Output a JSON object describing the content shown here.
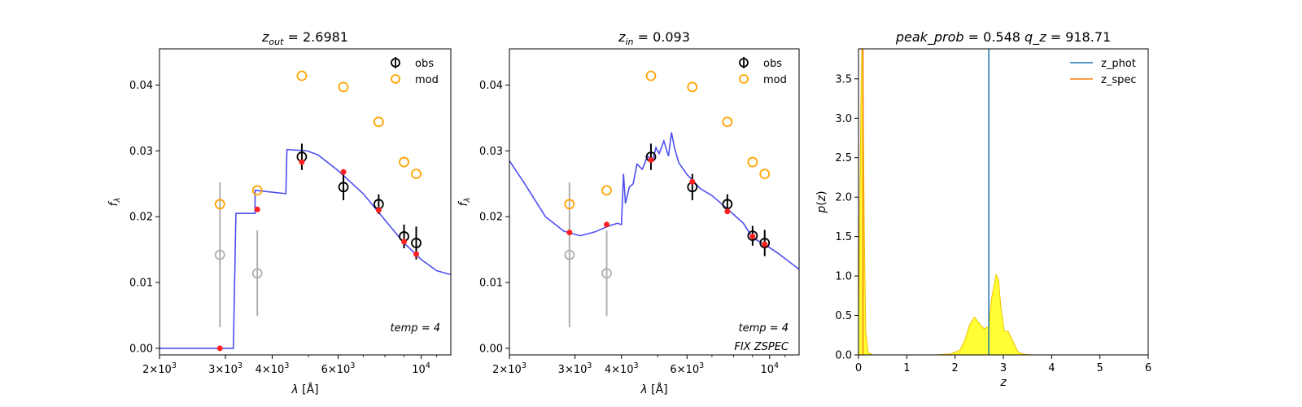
{
  "chart_data": [
    {
      "type": "scatter",
      "panel": "sed_zout",
      "title": "z_out = 2.6981",
      "title_var": "z",
      "title_sub": "out",
      "title_value": "2.6981",
      "xlabel": "λ [Å]",
      "ylabel": "f_λ",
      "xscale": "log",
      "xlim": [
        2000,
        12000
      ],
      "ylim": [
        -0.001,
        0.0455
      ],
      "xticks": [
        {
          "value": 2000,
          "mant": "2",
          "exp": "3"
        },
        {
          "value": 3000,
          "mant": "3",
          "exp": "3"
        },
        {
          "value": 4000,
          "mant": "4",
          "exp": "3"
        },
        {
          "value": 6000,
          "mant": "6",
          "exp": "3"
        },
        {
          "value": 10000,
          "mant": "",
          "exp": "4"
        }
      ],
      "yticks": [
        0.0,
        0.01,
        0.02,
        0.03,
        0.04
      ],
      "ytick_labels": [
        "0.00",
        "0.01",
        "0.02",
        "0.03",
        "0.04"
      ],
      "legend": [
        "obs",
        "mod"
      ],
      "annotations": [
        "temp = 4"
      ],
      "template_curve": [
        [
          2000,
          0.0
        ],
        [
          3150,
          0.0
        ],
        [
          3200,
          0.0205
        ],
        [
          3600,
          0.0205
        ],
        [
          3600,
          0.024
        ],
        [
          4350,
          0.0235
        ],
        [
          4380,
          0.0302
        ],
        [
          4950,
          0.03
        ],
        [
          5300,
          0.0294
        ],
        [
          6000,
          0.027
        ],
        [
          7000,
          0.0235
        ],
        [
          8000,
          0.0195
        ],
        [
          9000,
          0.016
        ],
        [
          10000,
          0.0135
        ],
        [
          11000,
          0.0118
        ],
        [
          12000,
          0.0112
        ]
      ],
      "obs": [
        {
          "x": 4800,
          "y": 0.0291,
          "err": 0.002
        },
        {
          "x": 6200,
          "y": 0.0245,
          "err": 0.002
        },
        {
          "x": 7700,
          "y": 0.0219,
          "err": 0.0015
        },
        {
          "x": 9000,
          "y": 0.017,
          "err": 0.0018
        },
        {
          "x": 9700,
          "y": 0.016,
          "err": 0.0025
        }
      ],
      "obs_low": [
        {
          "x": 2900,
          "y": 0.0142,
          "err": 0.011
        },
        {
          "x": 3650,
          "y": 0.0114,
          "err": 0.0065
        }
      ],
      "mod": [
        {
          "x": 2900,
          "y": 0.0219
        },
        {
          "x": 3650,
          "y": 0.024
        },
        {
          "x": 4800,
          "y": 0.0414
        },
        {
          "x": 6200,
          "y": 0.0397
        },
        {
          "x": 7700,
          "y": 0.0344
        },
        {
          "x": 9000,
          "y": 0.0283
        },
        {
          "x": 9700,
          "y": 0.0265
        }
      ],
      "model_points": [
        {
          "x": 2900,
          "y": 0.0
        },
        {
          "x": 3650,
          "y": 0.0211
        },
        {
          "x": 4800,
          "y": 0.0283
        },
        {
          "x": 6200,
          "y": 0.0268
        },
        {
          "x": 7700,
          "y": 0.021
        },
        {
          "x": 9000,
          "y": 0.0162
        },
        {
          "x": 9700,
          "y": 0.0143
        }
      ]
    },
    {
      "type": "scatter",
      "panel": "sed_zin",
      "title": "z_in = 0.093",
      "title_var": "z",
      "title_sub": "in",
      "title_value": "0.093",
      "xlabel": "λ [Å]",
      "ylabel": "f_λ",
      "xscale": "log",
      "xlim": [
        2000,
        12000
      ],
      "ylim": [
        -0.001,
        0.0455
      ],
      "xticks": [
        {
          "value": 2000,
          "mant": "2",
          "exp": "3"
        },
        {
          "value": 3000,
          "mant": "3",
          "exp": "3"
        },
        {
          "value": 4000,
          "mant": "4",
          "exp": "3"
        },
        {
          "value": 6000,
          "mant": "6",
          "exp": "3"
        },
        {
          "value": 10000,
          "mant": "",
          "exp": "4"
        }
      ],
      "yticks": [
        0.0,
        0.01,
        0.02,
        0.03,
        0.04
      ],
      "ytick_labels": [
        "0.00",
        "0.01",
        "0.02",
        "0.03",
        "0.04"
      ],
      "legend": [
        "obs",
        "mod"
      ],
      "annotations": [
        "temp = 4",
        "FIX ZSPEC"
      ],
      "template_curve": [
        [
          2000,
          0.0285
        ],
        [
          2200,
          0.025
        ],
        [
          2500,
          0.02
        ],
        [
          2800,
          0.0178
        ],
        [
          3100,
          0.0171
        ],
        [
          3400,
          0.0177
        ],
        [
          3700,
          0.0186
        ],
        [
          3900,
          0.019
        ],
        [
          4000,
          0.0188
        ],
        [
          4050,
          0.0265
        ],
        [
          4100,
          0.022
        ],
        [
          4200,
          0.0245
        ],
        [
          4300,
          0.025
        ],
        [
          4400,
          0.028
        ],
        [
          4550,
          0.0272
        ],
        [
          4700,
          0.0292
        ],
        [
          4850,
          0.0285
        ],
        [
          4950,
          0.0305
        ],
        [
          5050,
          0.0296
        ],
        [
          5200,
          0.0315
        ],
        [
          5350,
          0.0292
        ],
        [
          5450,
          0.0328
        ],
        [
          5550,
          0.0305
        ],
        [
          5700,
          0.0282
        ],
        [
          6000,
          0.0264
        ],
        [
          6500,
          0.0243
        ],
        [
          7000,
          0.0232
        ],
        [
          7700,
          0.0212
        ],
        [
          8500,
          0.019
        ],
        [
          9000,
          0.0168
        ],
        [
          9700,
          0.0158
        ],
        [
          10500,
          0.0145
        ],
        [
          11200,
          0.0133
        ],
        [
          12000,
          0.012
        ]
      ],
      "obs": [
        {
          "x": 4800,
          "y": 0.0291,
          "err": 0.002
        },
        {
          "x": 6200,
          "y": 0.0245,
          "err": 0.002
        },
        {
          "x": 7700,
          "y": 0.0219,
          "err": 0.0015
        },
        {
          "x": 9000,
          "y": 0.0171,
          "err": 0.0015
        },
        {
          "x": 9700,
          "y": 0.016,
          "err": 0.002
        }
      ],
      "obs_low": [
        {
          "x": 2900,
          "y": 0.0142,
          "err": 0.011
        },
        {
          "x": 3650,
          "y": 0.0114,
          "err": 0.0065
        }
      ],
      "mod": [
        {
          "x": 2900,
          "y": 0.0219
        },
        {
          "x": 3650,
          "y": 0.024
        },
        {
          "x": 4800,
          "y": 0.0414
        },
        {
          "x": 6200,
          "y": 0.0397
        },
        {
          "x": 7700,
          "y": 0.0344
        },
        {
          "x": 9000,
          "y": 0.0283
        },
        {
          "x": 9700,
          "y": 0.0265
        }
      ],
      "model_points": [
        {
          "x": 2900,
          "y": 0.0176
        },
        {
          "x": 3650,
          "y": 0.0188
        },
        {
          "x": 4800,
          "y": 0.0286
        },
        {
          "x": 6200,
          "y": 0.0253
        },
        {
          "x": 7700,
          "y": 0.0208
        },
        {
          "x": 9000,
          "y": 0.017
        },
        {
          "x": 9700,
          "y": 0.0158
        }
      ]
    },
    {
      "type": "area",
      "panel": "pz",
      "title": "peak_prob = 0.548     q_z = 918.71",
      "title_parts": [
        {
          "var": "peak_prob",
          "value": "0.548"
        },
        {
          "var": "q_z",
          "value": "918.71"
        }
      ],
      "xlabel": "z",
      "ylabel": "p(z)",
      "xlim": [
        0,
        6
      ],
      "ylim": [
        0,
        3.88
      ],
      "xticks": [
        0,
        1,
        2,
        3,
        4,
        5,
        6
      ],
      "xtick_labels": [
        "0",
        "1",
        "2",
        "3",
        "4",
        "5",
        "6"
      ],
      "yticks": [
        0.0,
        0.5,
        1.0,
        1.5,
        2.0,
        2.5,
        3.0,
        3.5
      ],
      "ytick_labels": [
        "0.0",
        "0.5",
        "1.0",
        "1.5",
        "2.0",
        "2.5",
        "3.0",
        "3.5"
      ],
      "legend": [
        "z_phot",
        "z_spec"
      ],
      "z_phot": 2.6981,
      "z_spec": 0.093,
      "pz": [
        [
          0,
          0.5
        ],
        [
          0.02,
          1.5
        ],
        [
          0.05,
          3.2
        ],
        [
          0.07,
          4.0
        ],
        [
          0.09,
          3.8
        ],
        [
          0.12,
          1.6
        ],
        [
          0.15,
          0.3
        ],
        [
          0.2,
          0.03
        ],
        [
          0.3,
          0.0
        ],
        [
          1.6,
          0.0
        ],
        [
          1.9,
          0.01
        ],
        [
          2.1,
          0.06
        ],
        [
          2.2,
          0.18
        ],
        [
          2.3,
          0.38
        ],
        [
          2.4,
          0.48
        ],
        [
          2.5,
          0.4
        ],
        [
          2.6,
          0.33
        ],
        [
          2.7,
          0.36
        ],
        [
          2.75,
          0.7
        ],
        [
          2.85,
          1.02
        ],
        [
          2.9,
          0.95
        ],
        [
          2.95,
          0.6
        ],
        [
          3.02,
          0.3
        ],
        [
          3.1,
          0.3
        ],
        [
          3.2,
          0.17
        ],
        [
          3.3,
          0.04
        ],
        [
          3.4,
          0.01
        ],
        [
          3.6,
          0.0
        ],
        [
          5.0,
          0.0
        ]
      ]
    }
  ],
  "colors": {
    "template": "#3b3bf0",
    "obs": "#000000",
    "obs_low": "#b0b0b0",
    "mod": "#ffa500",
    "model_point": "#ff2020",
    "z_phot": "#1f77b4",
    "z_spec": "#ff7f0e",
    "pz_fill": "#ffff33",
    "pz_edge": "#f0c000"
  }
}
